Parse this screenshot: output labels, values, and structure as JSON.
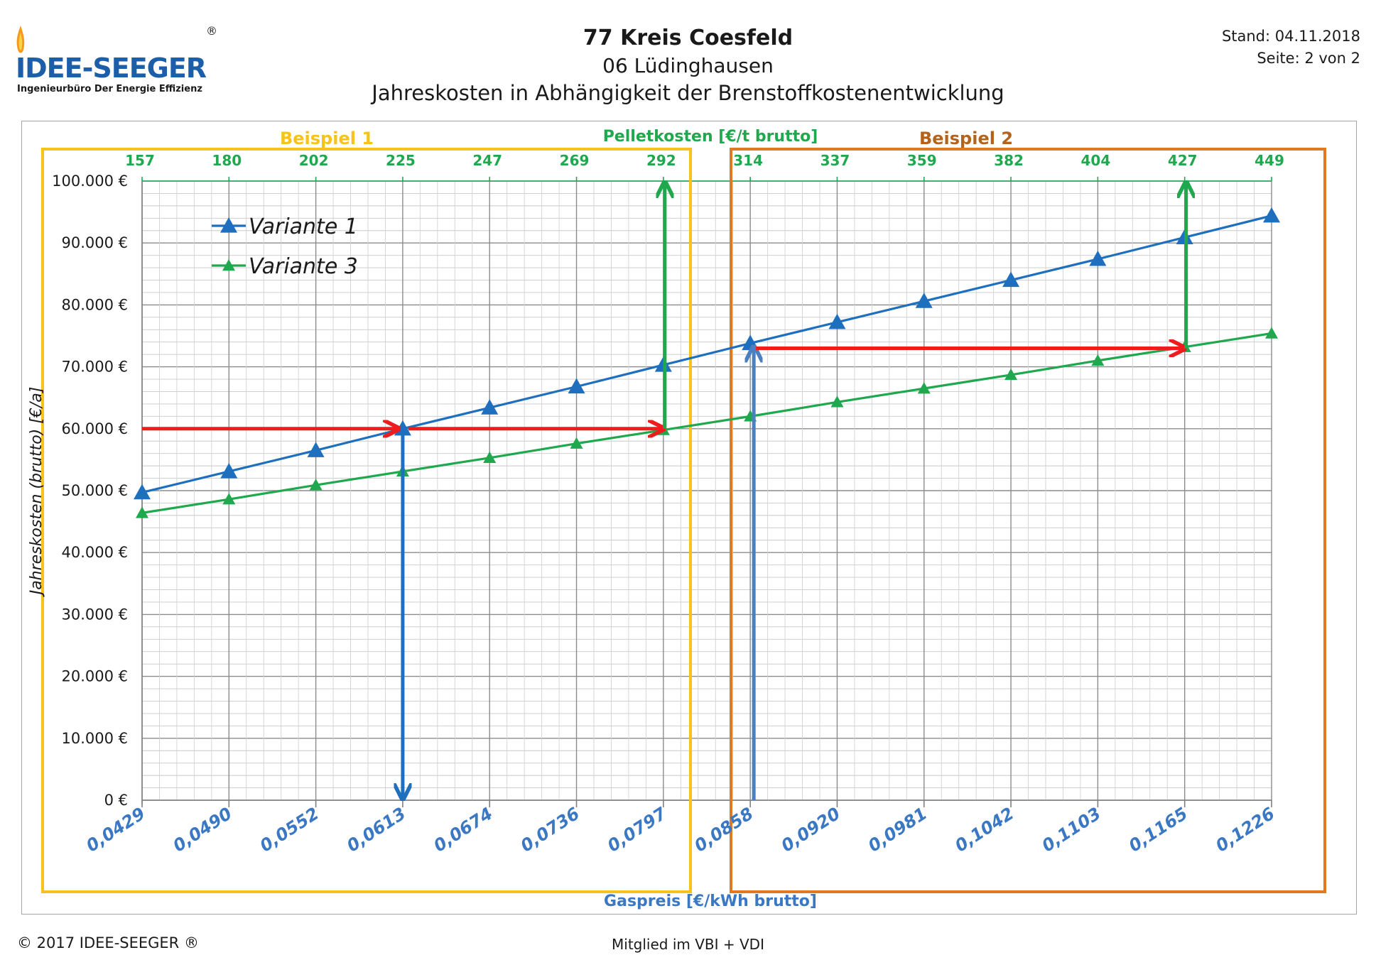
{
  "header": {
    "title": "77 Kreis Coesfeld",
    "subtitle": "06 Lüdinghausen",
    "subtitle2": "Jahreskosten in Abhängigkeit der Brenstoffkostenentwicklung",
    "stand": "Stand: 04.11.2018",
    "seite": "Seite: 2 von 2"
  },
  "logo": {
    "name": "IDEE-SEEGER",
    "tagline": "Ingenieurbüro Der Energie Effizienz",
    "reg": "®"
  },
  "footer": {
    "copyright": "© 2017 IDEE-SEEGER ®",
    "member": "Mitglied im VBI + VDI"
  },
  "colors": {
    "variante1": "#1f6fbf",
    "variante3": "#1fa84e",
    "red_arrow": "#ee1c1c",
    "blue_arrow": "#1f6fbf",
    "green_arrow": "#1fa84e",
    "beispiel1": "#f7c21b",
    "beispiel2": "#e07a22",
    "gas_label": "#3b78c4",
    "pellet_label": "#1fa84e"
  },
  "chart_data": {
    "type": "line",
    "ylabel": "Jahreskosten (brutto) [€/a]",
    "xlabel": "Gaspreis [€/kWh brutto]",
    "x2label": "Pelletkosten [€/t brutto]",
    "ylim": [
      0,
      100000
    ],
    "y_ticks": [
      "0 €",
      "10.000 €",
      "20.000 €",
      "30.000 €",
      "40.000 €",
      "50.000 €",
      "60.000 €",
      "70.000 €",
      "80.000 €",
      "90.000 €",
      "100.000 €"
    ],
    "x_categories": [
      "0,0429",
      "0,0490",
      "0,0552",
      "0,0613",
      "0,0674",
      "0,0736",
      "0,0797",
      "0,0858",
      "0,0920",
      "0,0981",
      "0,1042",
      "0,1103",
      "0,1165",
      "0,1226"
    ],
    "x2_categories": [
      "157",
      "180",
      "202",
      "225",
      "247",
      "269",
      "292",
      "314",
      "337",
      "359",
      "382",
      "404",
      "427",
      "449"
    ],
    "series": [
      {
        "name": "Variante 1",
        "values": [
          49700,
          53100,
          56500,
          60000,
          63400,
          66800,
          70300,
          73800,
          77200,
          80600,
          84000,
          87400,
          90900,
          94400
        ]
      },
      {
        "name": "Variante 3",
        "values": [
          46400,
          48600,
          50900,
          53100,
          55300,
          57600,
          59800,
          62000,
          64300,
          66500,
          68700,
          71000,
          73200,
          75400
        ]
      }
    ],
    "legend": "top-left",
    "grid": true,
    "annotations": {
      "beispiel1": "Beispiel 1",
      "beispiel2": "Beispiel 2"
    },
    "arrows": [
      {
        "color": "red",
        "from": [
          0,
          60000
        ],
        "to": [
          3,
          60000
        ]
      },
      {
        "color": "red",
        "from": [
          3,
          60000
        ],
        "to": [
          6,
          60000
        ]
      },
      {
        "color": "blue",
        "from": [
          3,
          60000
        ],
        "to": [
          3,
          0
        ]
      },
      {
        "color": "green",
        "from": [
          6,
          60000
        ],
        "to": [
          6,
          100000
        ]
      },
      {
        "color": "blue",
        "from": [
          7,
          0
        ],
        "to": [
          7,
          73000
        ]
      },
      {
        "color": "red",
        "from": [
          7,
          73000
        ],
        "to": [
          12,
          73000
        ]
      },
      {
        "color": "green",
        "from": [
          12,
          73000
        ],
        "to": [
          12,
          100000
        ]
      }
    ]
  }
}
